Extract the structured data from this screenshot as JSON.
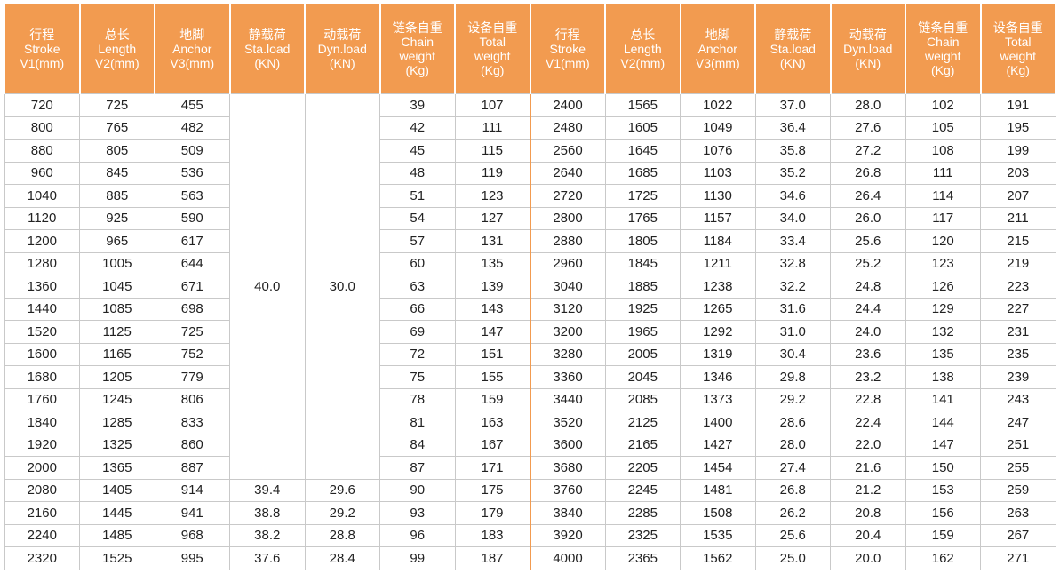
{
  "table": {
    "headers": [
      [
        "行程",
        "Stroke",
        "V1(mm)"
      ],
      [
        "总长",
        "Length",
        "V2(mm)"
      ],
      [
        "地脚",
        "Anchor",
        "V3(mm)"
      ],
      [
        "静载荷",
        "Sta.load",
        "(KN)"
      ],
      [
        "动载荷",
        "Dyn.load",
        "(KN)"
      ],
      [
        "链条自重",
        "Chain",
        "weight",
        "(Kg)"
      ],
      [
        "设备自重",
        "Total",
        "weight",
        "(Kg)"
      ],
      [
        "行程",
        "Stroke",
        "V1(mm)"
      ],
      [
        "总长",
        "Length",
        "V2(mm)"
      ],
      [
        "地脚",
        "Anchor",
        "V3(mm)"
      ],
      [
        "静载荷",
        "Sta.load",
        "(KN)"
      ],
      [
        "动载荷",
        "Dyn.load",
        "(KN)"
      ],
      [
        "链条自重",
        "Chain",
        "weight",
        "(Kg)"
      ],
      [
        "设备自重",
        "Total",
        "weight",
        "(Kg)"
      ]
    ],
    "merged": [
      "40.0",
      "30.0"
    ],
    "left_rows": [
      [
        "720",
        "725",
        "455",
        "39",
        "107"
      ],
      [
        "800",
        "765",
        "482",
        "42",
        "111"
      ],
      [
        "880",
        "805",
        "509",
        "45",
        "115"
      ],
      [
        "960",
        "845",
        "536",
        "48",
        "119"
      ],
      [
        "1040",
        "885",
        "563",
        "51",
        "123"
      ],
      [
        "1120",
        "925",
        "590",
        "54",
        "127"
      ],
      [
        "1200",
        "965",
        "617",
        "57",
        "131"
      ],
      [
        "1280",
        "1005",
        "644",
        "60",
        "135"
      ],
      [
        "1360",
        "1045",
        "671",
        "63",
        "139"
      ],
      [
        "1440",
        "1085",
        "698",
        "66",
        "143"
      ],
      [
        "1520",
        "1125",
        "725",
        "69",
        "147"
      ],
      [
        "1600",
        "1165",
        "752",
        "72",
        "151"
      ],
      [
        "1680",
        "1205",
        "779",
        "75",
        "155"
      ],
      [
        "1760",
        "1245",
        "806",
        "78",
        "159"
      ],
      [
        "1840",
        "1285",
        "833",
        "81",
        "163"
      ],
      [
        "1920",
        "1325",
        "860",
        "84",
        "167"
      ],
      [
        "2000",
        "1365",
        "887",
        "87",
        "171"
      ],
      [
        "2080",
        "1405",
        "914",
        "39.4",
        "29.6",
        "90",
        "175"
      ],
      [
        "2160",
        "1445",
        "941",
        "38.8",
        "29.2",
        "93",
        "179"
      ],
      [
        "2240",
        "1485",
        "968",
        "38.2",
        "28.8",
        "96",
        "183"
      ],
      [
        "2320",
        "1525",
        "995",
        "37.6",
        "28.4",
        "99",
        "187"
      ]
    ],
    "right_rows": [
      [
        "2400",
        "1565",
        "1022",
        "37.0",
        "28.0",
        "102",
        "191"
      ],
      [
        "2480",
        "1605",
        "1049",
        "36.4",
        "27.6",
        "105",
        "195"
      ],
      [
        "2560",
        "1645",
        "1076",
        "35.8",
        "27.2",
        "108",
        "199"
      ],
      [
        "2640",
        "1685",
        "1103",
        "35.2",
        "26.8",
        "111",
        "203"
      ],
      [
        "2720",
        "1725",
        "1130",
        "34.6",
        "26.4",
        "114",
        "207"
      ],
      [
        "2800",
        "1765",
        "1157",
        "34.0",
        "26.0",
        "117",
        "211"
      ],
      [
        "2880",
        "1805",
        "1184",
        "33.4",
        "25.6",
        "120",
        "215"
      ],
      [
        "2960",
        "1845",
        "1211",
        "32.8",
        "25.2",
        "123",
        "219"
      ],
      [
        "3040",
        "1885",
        "1238",
        "32.2",
        "24.8",
        "126",
        "223"
      ],
      [
        "3120",
        "1925",
        "1265",
        "31.6",
        "24.4",
        "129",
        "227"
      ],
      [
        "3200",
        "1965",
        "1292",
        "31.0",
        "24.0",
        "132",
        "231"
      ],
      [
        "3280",
        "2005",
        "1319",
        "30.4",
        "23.6",
        "135",
        "235"
      ],
      [
        "3360",
        "2045",
        "1346",
        "29.8",
        "23.2",
        "138",
        "239"
      ],
      [
        "3440",
        "2085",
        "1373",
        "29.2",
        "22.8",
        "141",
        "243"
      ],
      [
        "3520",
        "2125",
        "1400",
        "28.6",
        "22.4",
        "144",
        "247"
      ],
      [
        "3600",
        "2165",
        "1427",
        "28.0",
        "22.0",
        "147",
        "251"
      ],
      [
        "3680",
        "2205",
        "1454",
        "27.4",
        "21.6",
        "150",
        "255"
      ],
      [
        "3760",
        "2245",
        "1481",
        "26.8",
        "21.2",
        "153",
        "259"
      ],
      [
        "3840",
        "2285",
        "1508",
        "26.2",
        "20.8",
        "156",
        "263"
      ],
      [
        "3920",
        "2325",
        "1535",
        "25.6",
        "20.4",
        "159",
        "267"
      ],
      [
        "4000",
        "2365",
        "1562",
        "25.0",
        "20.0",
        "162",
        "271"
      ]
    ]
  }
}
